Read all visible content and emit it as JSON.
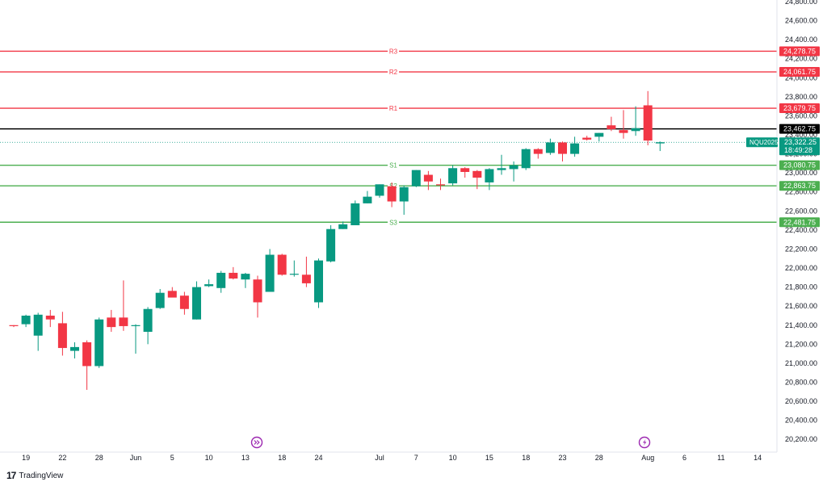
{
  "brand": {
    "logo_text": "17",
    "name": "TradingView"
  },
  "chart_data": {
    "type": "candlestick",
    "symbol": "NQU2025",
    "last_price": "23,322.25",
    "countdown": "18:49:28",
    "ylim": [
      20100,
      24800
    ],
    "y_ticks": [
      20200,
      20400,
      20600,
      20800,
      21000,
      21200,
      21400,
      21600,
      21800,
      22000,
      22200,
      22400,
      22600,
      22800,
      23000,
      23200,
      23400,
      23600,
      23800,
      24000,
      24200,
      24400,
      24600,
      24800
    ],
    "y_tick_labels": [
      "20,200.00",
      "20,400.00",
      "20,600.00",
      "20,800.00",
      "21,000.00",
      "21,200.00",
      "21,400.00",
      "21,600.00",
      "21,800.00",
      "22,000.00",
      "22,200.00",
      "22,400.00",
      "22,600.00",
      "22,800.00",
      "23,000.00",
      "23,200.00",
      "23,400.00",
      "23,600.00",
      "23,800.00",
      "24,000.00",
      "24,200.00",
      "24,400.00",
      "24,600.00",
      "24,800.00"
    ],
    "x_tick_labels": [
      {
        "label": "19",
        "bar": 1
      },
      {
        "label": "22",
        "bar": 4
      },
      {
        "label": "28",
        "bar": 7
      },
      {
        "label": "Jun",
        "bar": 10
      },
      {
        "label": "5",
        "bar": 13
      },
      {
        "label": "10",
        "bar": 16
      },
      {
        "label": "13",
        "bar": 19
      },
      {
        "label": "18",
        "bar": 22
      },
      {
        "label": "24",
        "bar": 25
      },
      {
        "label": "Jul",
        "bar": 30
      },
      {
        "label": "7",
        "bar": 33
      },
      {
        "label": "10",
        "bar": 36
      },
      {
        "label": "15",
        "bar": 39
      },
      {
        "label": "18",
        "bar": 42
      },
      {
        "label": "23",
        "bar": 45
      },
      {
        "label": "28",
        "bar": 48
      },
      {
        "label": "Aug",
        "bar": 52
      },
      {
        "label": "6",
        "bar": 55
      },
      {
        "label": "11",
        "bar": 58
      },
      {
        "label": "14",
        "bar": 61
      }
    ],
    "levels": [
      {
        "name": "R3",
        "value": 24278.75,
        "label": "24,278.75",
        "color": "#f23645"
      },
      {
        "name": "R2",
        "value": 24061.75,
        "label": "24,061.75",
        "color": "#f23645"
      },
      {
        "name": "R1",
        "value": 23679.75,
        "label": "23,679.75",
        "color": "#f23645"
      },
      {
        "name": "",
        "value": 23462.75,
        "label": "23,462.75",
        "color": "#000000"
      },
      {
        "name": "S1",
        "value": 23080.75,
        "label": "23,080.75",
        "color": "#4caf50"
      },
      {
        "name": "S2",
        "value": 22863.75,
        "label": "22,863.75",
        "color": "#4caf50"
      },
      {
        "name": "S3",
        "value": 22481.75,
        "label": "22,481.75",
        "color": "#4caf50"
      }
    ],
    "candles": [
      {
        "o": 21400,
        "h": 21400,
        "l": 21380,
        "c": 21390
      },
      {
        "o": 21410,
        "h": 21510,
        "l": 21380,
        "c": 21500
      },
      {
        "o": 21290,
        "h": 21530,
        "l": 21130,
        "c": 21510
      },
      {
        "o": 21500,
        "h": 21560,
        "l": 21380,
        "c": 21460
      },
      {
        "o": 21420,
        "h": 21540,
        "l": 21080,
        "c": 21160
      },
      {
        "o": 21130,
        "h": 21220,
        "l": 21050,
        "c": 21170
      },
      {
        "o": 21220,
        "h": 21240,
        "l": 20720,
        "c": 20970
      },
      {
        "o": 20970,
        "h": 21480,
        "l": 20950,
        "c": 21460
      },
      {
        "o": 21480,
        "h": 21560,
        "l": 21330,
        "c": 21380
      },
      {
        "o": 21480,
        "h": 21870,
        "l": 21340,
        "c": 21390
      },
      {
        "o": 21400,
        "h": 21410,
        "l": 21100,
        "c": 21400
      },
      {
        "o": 21330,
        "h": 21590,
        "l": 21200,
        "c": 21570
      },
      {
        "o": 21580,
        "h": 21780,
        "l": 21570,
        "c": 21740
      },
      {
        "o": 21760,
        "h": 21800,
        "l": 21710,
        "c": 21690
      },
      {
        "o": 21710,
        "h": 21750,
        "l": 21510,
        "c": 21570
      },
      {
        "o": 21460,
        "h": 21860,
        "l": 21460,
        "c": 21800
      },
      {
        "o": 21810,
        "h": 21880,
        "l": 21800,
        "c": 21830
      },
      {
        "o": 21790,
        "h": 21970,
        "l": 21740,
        "c": 21950
      },
      {
        "o": 21950,
        "h": 22010,
        "l": 21880,
        "c": 21890
      },
      {
        "o": 21880,
        "h": 21950,
        "l": 21790,
        "c": 21940
      },
      {
        "o": 21880,
        "h": 21920,
        "l": 21480,
        "c": 21640
      },
      {
        "o": 21750,
        "h": 22200,
        "l": 21750,
        "c": 22140
      },
      {
        "o": 22140,
        "h": 22150,
        "l": 21920,
        "c": 21930
      },
      {
        "o": 21930,
        "h": 22080,
        "l": 21910,
        "c": 21940
      },
      {
        "o": 21930,
        "h": 22120,
        "l": 21800,
        "c": 21840
      },
      {
        "o": 21640,
        "h": 22100,
        "l": 21580,
        "c": 22080
      },
      {
        "o": 22070,
        "h": 22450,
        "l": 22060,
        "c": 22410
      },
      {
        "o": 22410,
        "h": 22490,
        "l": 22410,
        "c": 22460
      },
      {
        "o": 22450,
        "h": 22710,
        "l": 22450,
        "c": 22680
      },
      {
        "o": 22680,
        "h": 22810,
        "l": 22680,
        "c": 22750
      },
      {
        "o": 22760,
        "h": 22880,
        "l": 22740,
        "c": 22880
      },
      {
        "o": 22860,
        "h": 22900,
        "l": 22640,
        "c": 22700
      },
      {
        "o": 22700,
        "h": 22870,
        "l": 22560,
        "c": 22850
      },
      {
        "o": 22860,
        "h": 23030,
        "l": 22850,
        "c": 23030
      },
      {
        "o": 22980,
        "h": 23020,
        "l": 22820,
        "c": 22910
      },
      {
        "o": 22880,
        "h": 22940,
        "l": 22820,
        "c": 22870
      },
      {
        "o": 22890,
        "h": 23080,
        "l": 22870,
        "c": 23050
      },
      {
        "o": 23050,
        "h": 23060,
        "l": 22950,
        "c": 23010
      },
      {
        "o": 23020,
        "h": 23030,
        "l": 22830,
        "c": 22950
      },
      {
        "o": 22900,
        "h": 23050,
        "l": 22820,
        "c": 23040
      },
      {
        "o": 23030,
        "h": 23190,
        "l": 22980,
        "c": 23050
      },
      {
        "o": 23040,
        "h": 23120,
        "l": 22910,
        "c": 23080
      },
      {
        "o": 23050,
        "h": 23260,
        "l": 23030,
        "c": 23250
      },
      {
        "o": 23250,
        "h": 23260,
        "l": 23150,
        "c": 23200
      },
      {
        "o": 23210,
        "h": 23360,
        "l": 23190,
        "c": 23320
      },
      {
        "o": 23320,
        "h": 23330,
        "l": 23120,
        "c": 23200
      },
      {
        "o": 23200,
        "h": 23380,
        "l": 23170,
        "c": 23310
      },
      {
        "o": 23370,
        "h": 23390,
        "l": 23340,
        "c": 23350
      },
      {
        "o": 23380,
        "h": 23420,
        "l": 23330,
        "c": 23420
      },
      {
        "o": 23500,
        "h": 23590,
        "l": 23440,
        "c": 23460
      },
      {
        "o": 23450,
        "h": 23660,
        "l": 23360,
        "c": 23420
      },
      {
        "o": 23440,
        "h": 23700,
        "l": 23390,
        "c": 23470
      },
      {
        "o": 23710,
        "h": 23860,
        "l": 23290,
        "c": 23340
      },
      {
        "o": 23310,
        "h": 23330,
        "l": 23230,
        "c": 23322
      }
    ]
  }
}
